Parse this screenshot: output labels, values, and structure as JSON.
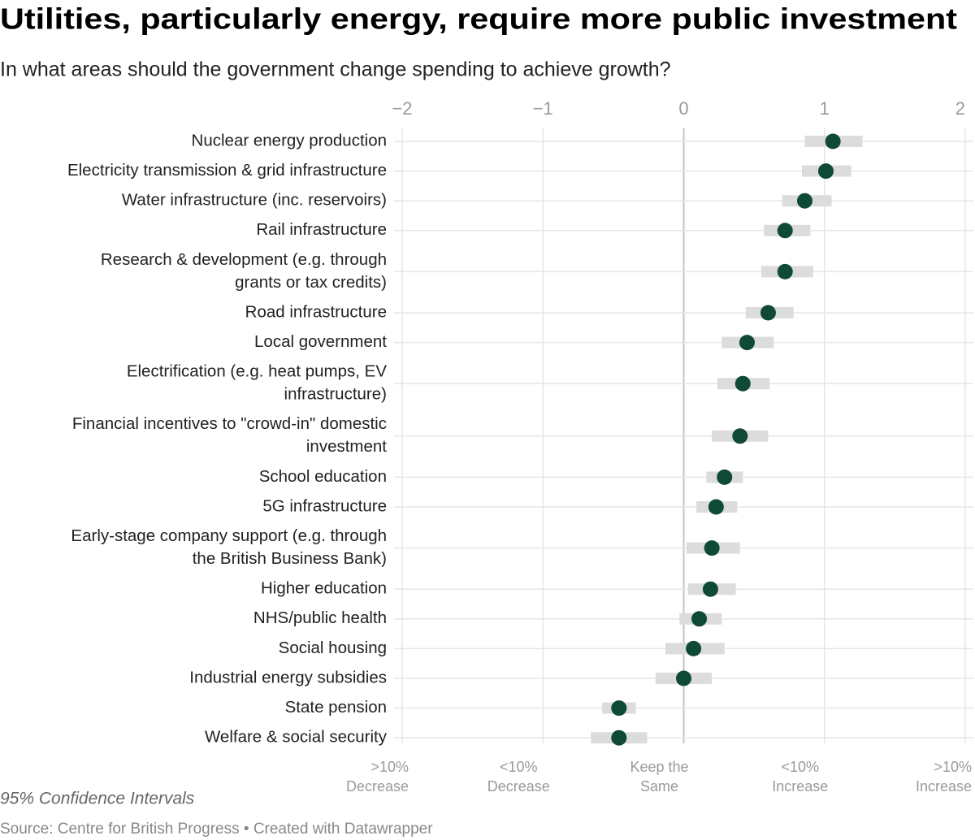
{
  "chart_data": {
    "type": "dot",
    "title": "Utilities, particularly energy, require more public investment",
    "subtitle": "In what areas should the government change spending to achieve growth?",
    "categories": [
      [
        "Nuclear energy production"
      ],
      [
        "Electricity transmission & grid infrastructure"
      ],
      [
        "Water infrastructure (inc. reservoirs)"
      ],
      [
        "Rail infrastructure"
      ],
      [
        "Research & development (e.g. through",
        "grants or tax credits)"
      ],
      [
        "Road infrastructure"
      ],
      [
        "Local government"
      ],
      [
        "Electrification (e.g. heat pumps, EV",
        "infrastructure)"
      ],
      [
        "Financial incentives to \"crowd-in\" domestic",
        "investment"
      ],
      [
        "School education"
      ],
      [
        "5G infrastructure"
      ],
      [
        "Early-stage company support (e.g. through",
        "the British Business Bank)"
      ],
      [
        "Higher education"
      ],
      [
        "NHS/public health"
      ],
      [
        "Social housing"
      ],
      [
        "Industrial energy subsidies"
      ],
      [
        "State pension"
      ],
      [
        "Welfare & social security"
      ]
    ],
    "values": [
      1.06,
      1.01,
      0.86,
      0.72,
      0.72,
      0.6,
      0.45,
      0.42,
      0.4,
      0.29,
      0.23,
      0.2,
      0.19,
      0.11,
      0.07,
      0.0,
      -0.46,
      -0.46
    ],
    "ci_low": [
      0.86,
      0.84,
      0.7,
      0.57,
      0.55,
      0.44,
      0.27,
      0.24,
      0.2,
      0.16,
      0.09,
      0.02,
      0.03,
      -0.03,
      -0.13,
      -0.2,
      -0.58,
      -0.66
    ],
    "ci_high": [
      1.27,
      1.19,
      1.05,
      0.9,
      0.92,
      0.78,
      0.64,
      0.61,
      0.6,
      0.42,
      0.38,
      0.4,
      0.37,
      0.27,
      0.29,
      0.2,
      -0.34,
      -0.26
    ],
    "color": "#0f4a34",
    "ci_color": "#dcdcdc",
    "xlim": [
      -2,
      2
    ],
    "xticks": [
      {
        "value": -2,
        "label": "−2"
      },
      {
        "value": -1,
        "label": "−1"
      },
      0,
      1,
      2
    ],
    "bottom_ticks": [
      {
        "value": -2,
        "label": [
          ">10%",
          "Decrease"
        ]
      },
      {
        "value": -1,
        "label": [
          "<10%",
          "Decrease"
        ]
      },
      {
        "value": 0,
        "label": [
          "Keep the",
          "Same"
        ]
      },
      {
        "value": 1,
        "label": [
          "<10%",
          "Increase"
        ]
      },
      {
        "value": 2,
        "label": [
          ">10%",
          "Increase"
        ]
      }
    ],
    "grid": true,
    "note": "95% Confidence Intervals",
    "source": "Source: Centre for British Progress • Created with Datawrapper"
  }
}
